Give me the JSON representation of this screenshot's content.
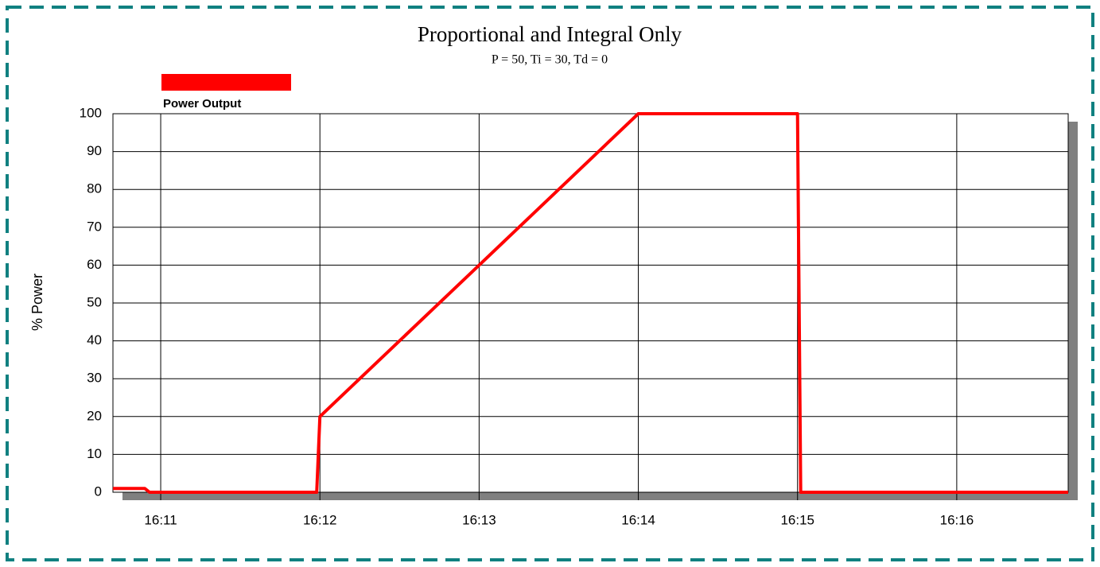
{
  "chart_data": {
    "type": "line",
    "title": "Proportional and Integral Only",
    "subtitle": "P = 50,  Ti = 30,  Td = 0",
    "y_label": "% Power",
    "x": [
      970.7,
      970.9,
      970.93,
      971.98,
      972.0,
      972.05,
      973.0,
      974.0,
      975.0,
      975.02,
      976.7
    ],
    "series": [
      {
        "name": "Power Output",
        "color": "#ff0000",
        "values": [
          1,
          1,
          0,
          0,
          20,
          22,
          60,
          100,
          100,
          0,
          0
        ]
      }
    ],
    "xlim": [
      970.7,
      976.7
    ],
    "xticks": [
      {
        "value": 971,
        "label": "16:11"
      },
      {
        "value": 972,
        "label": "16:12"
      },
      {
        "value": 973,
        "label": "16:13"
      },
      {
        "value": 974,
        "label": "16:14"
      },
      {
        "value": 975,
        "label": "16:15"
      },
      {
        "value": 976,
        "label": "16:16"
      }
    ],
    "ylim": [
      0,
      100
    ],
    "yticks": [
      0,
      10,
      20,
      30,
      40,
      50,
      60,
      70,
      80,
      90,
      100
    ],
    "grid": true,
    "legend": "top-left"
  }
}
